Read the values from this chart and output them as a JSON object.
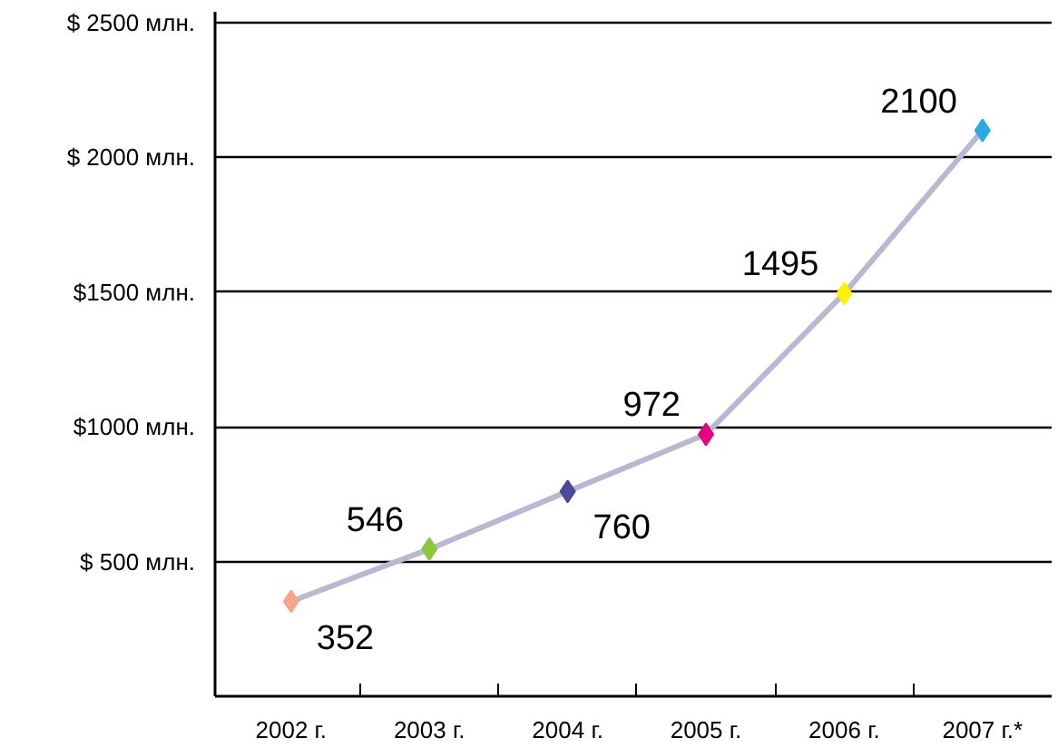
{
  "chart_data": {
    "type": "line",
    "categories": [
      "2002 г.",
      "2003 г.",
      "2004 г.",
      "2005 г.",
      "2006 г.",
      "2007 г.*"
    ],
    "series": [
      {
        "color": "#b9b8d3",
        "colors": [
          "#f4a58a",
          "#8dc63f",
          "#4a4a9a",
          "#e6007e",
          "#fff200",
          "#29abe2"
        ],
        "values": [
          352,
          546,
          760,
          972,
          1495,
          2100
        ]
      }
    ],
    "ylim": [
      0,
      2540
    ],
    "yticks": [
      {
        "value": 500,
        "label": "$ 500 млн."
      },
      {
        "value": 1000,
        "label": "$1000 млн."
      },
      {
        "value": 1500,
        "label": "$1500 млн."
      },
      {
        "value": 2000,
        "label": "$ 2000 млн."
      },
      {
        "value": 2500,
        "label": "$ 2500 млн."
      }
    ],
    "grid": "y",
    "marker": "diamond",
    "data_labels": true
  }
}
